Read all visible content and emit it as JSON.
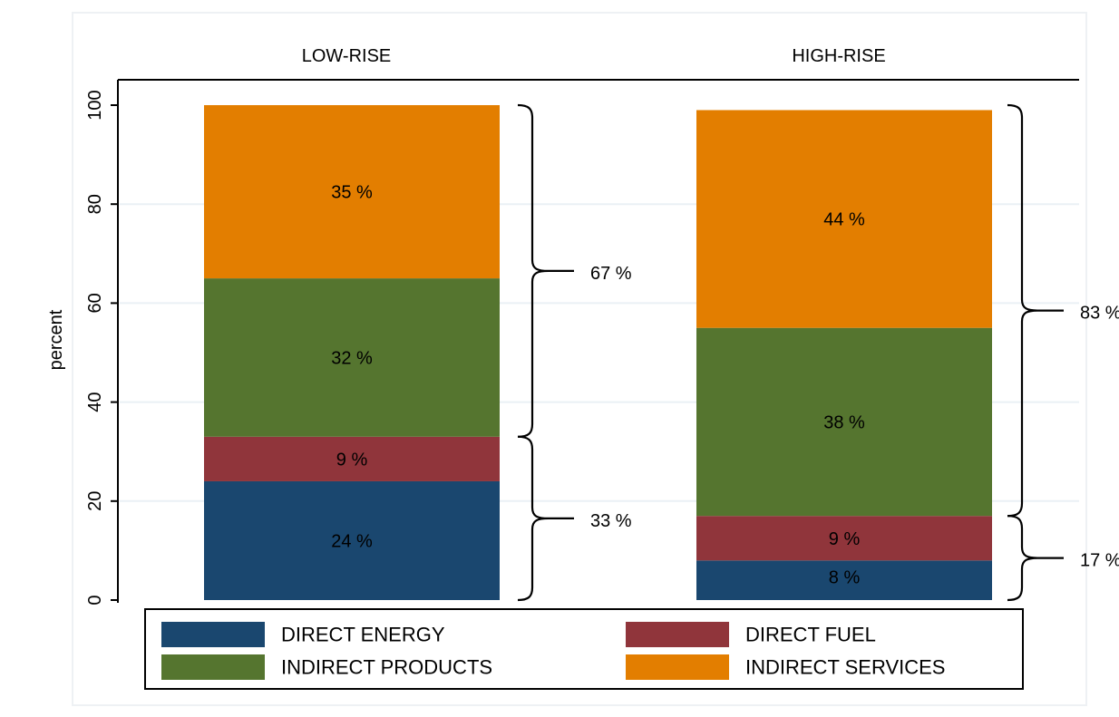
{
  "chart_data": {
    "type": "bar",
    "stacked": true,
    "categories": [
      "LOW-RISE",
      "HIGH-RISE"
    ],
    "ylabel": "percent",
    "ylim": [
      0,
      100
    ],
    "yticks": [
      "0",
      "20",
      "40",
      "60",
      "80",
      "100"
    ],
    "grid": true,
    "legend_position": "bottom",
    "series": [
      {
        "name": "DIRECT ENERGY",
        "color": "#1a476f",
        "values": [
          24,
          8
        ],
        "labels": [
          "24 %",
          "8 %"
        ]
      },
      {
        "name": "DIRECT FUEL",
        "color": "#90353b",
        "values": [
          9,
          9
        ],
        "labels": [
          "9 %",
          "9 %"
        ]
      },
      {
        "name": "INDIRECT PRODUCTS",
        "color": "#55752f",
        "values": [
          32,
          38
        ],
        "labels": [
          "32 %",
          "38 %"
        ]
      },
      {
        "name": "INDIRECT SERVICES",
        "color": "#e37e00",
        "values": [
          35,
          44
        ],
        "labels": [
          "35 %",
          "44 %"
        ]
      }
    ],
    "brackets": [
      {
        "category": "LOW-RISE",
        "from": 0,
        "to": 33,
        "label": "33 %"
      },
      {
        "category": "LOW-RISE",
        "from": 33,
        "to": 100,
        "label": "67 %"
      },
      {
        "category": "HIGH-RISE",
        "from": 0,
        "to": 17,
        "label": "17 %"
      },
      {
        "category": "HIGH-RISE",
        "from": 17,
        "to": 100,
        "label": "83 %"
      }
    ]
  }
}
